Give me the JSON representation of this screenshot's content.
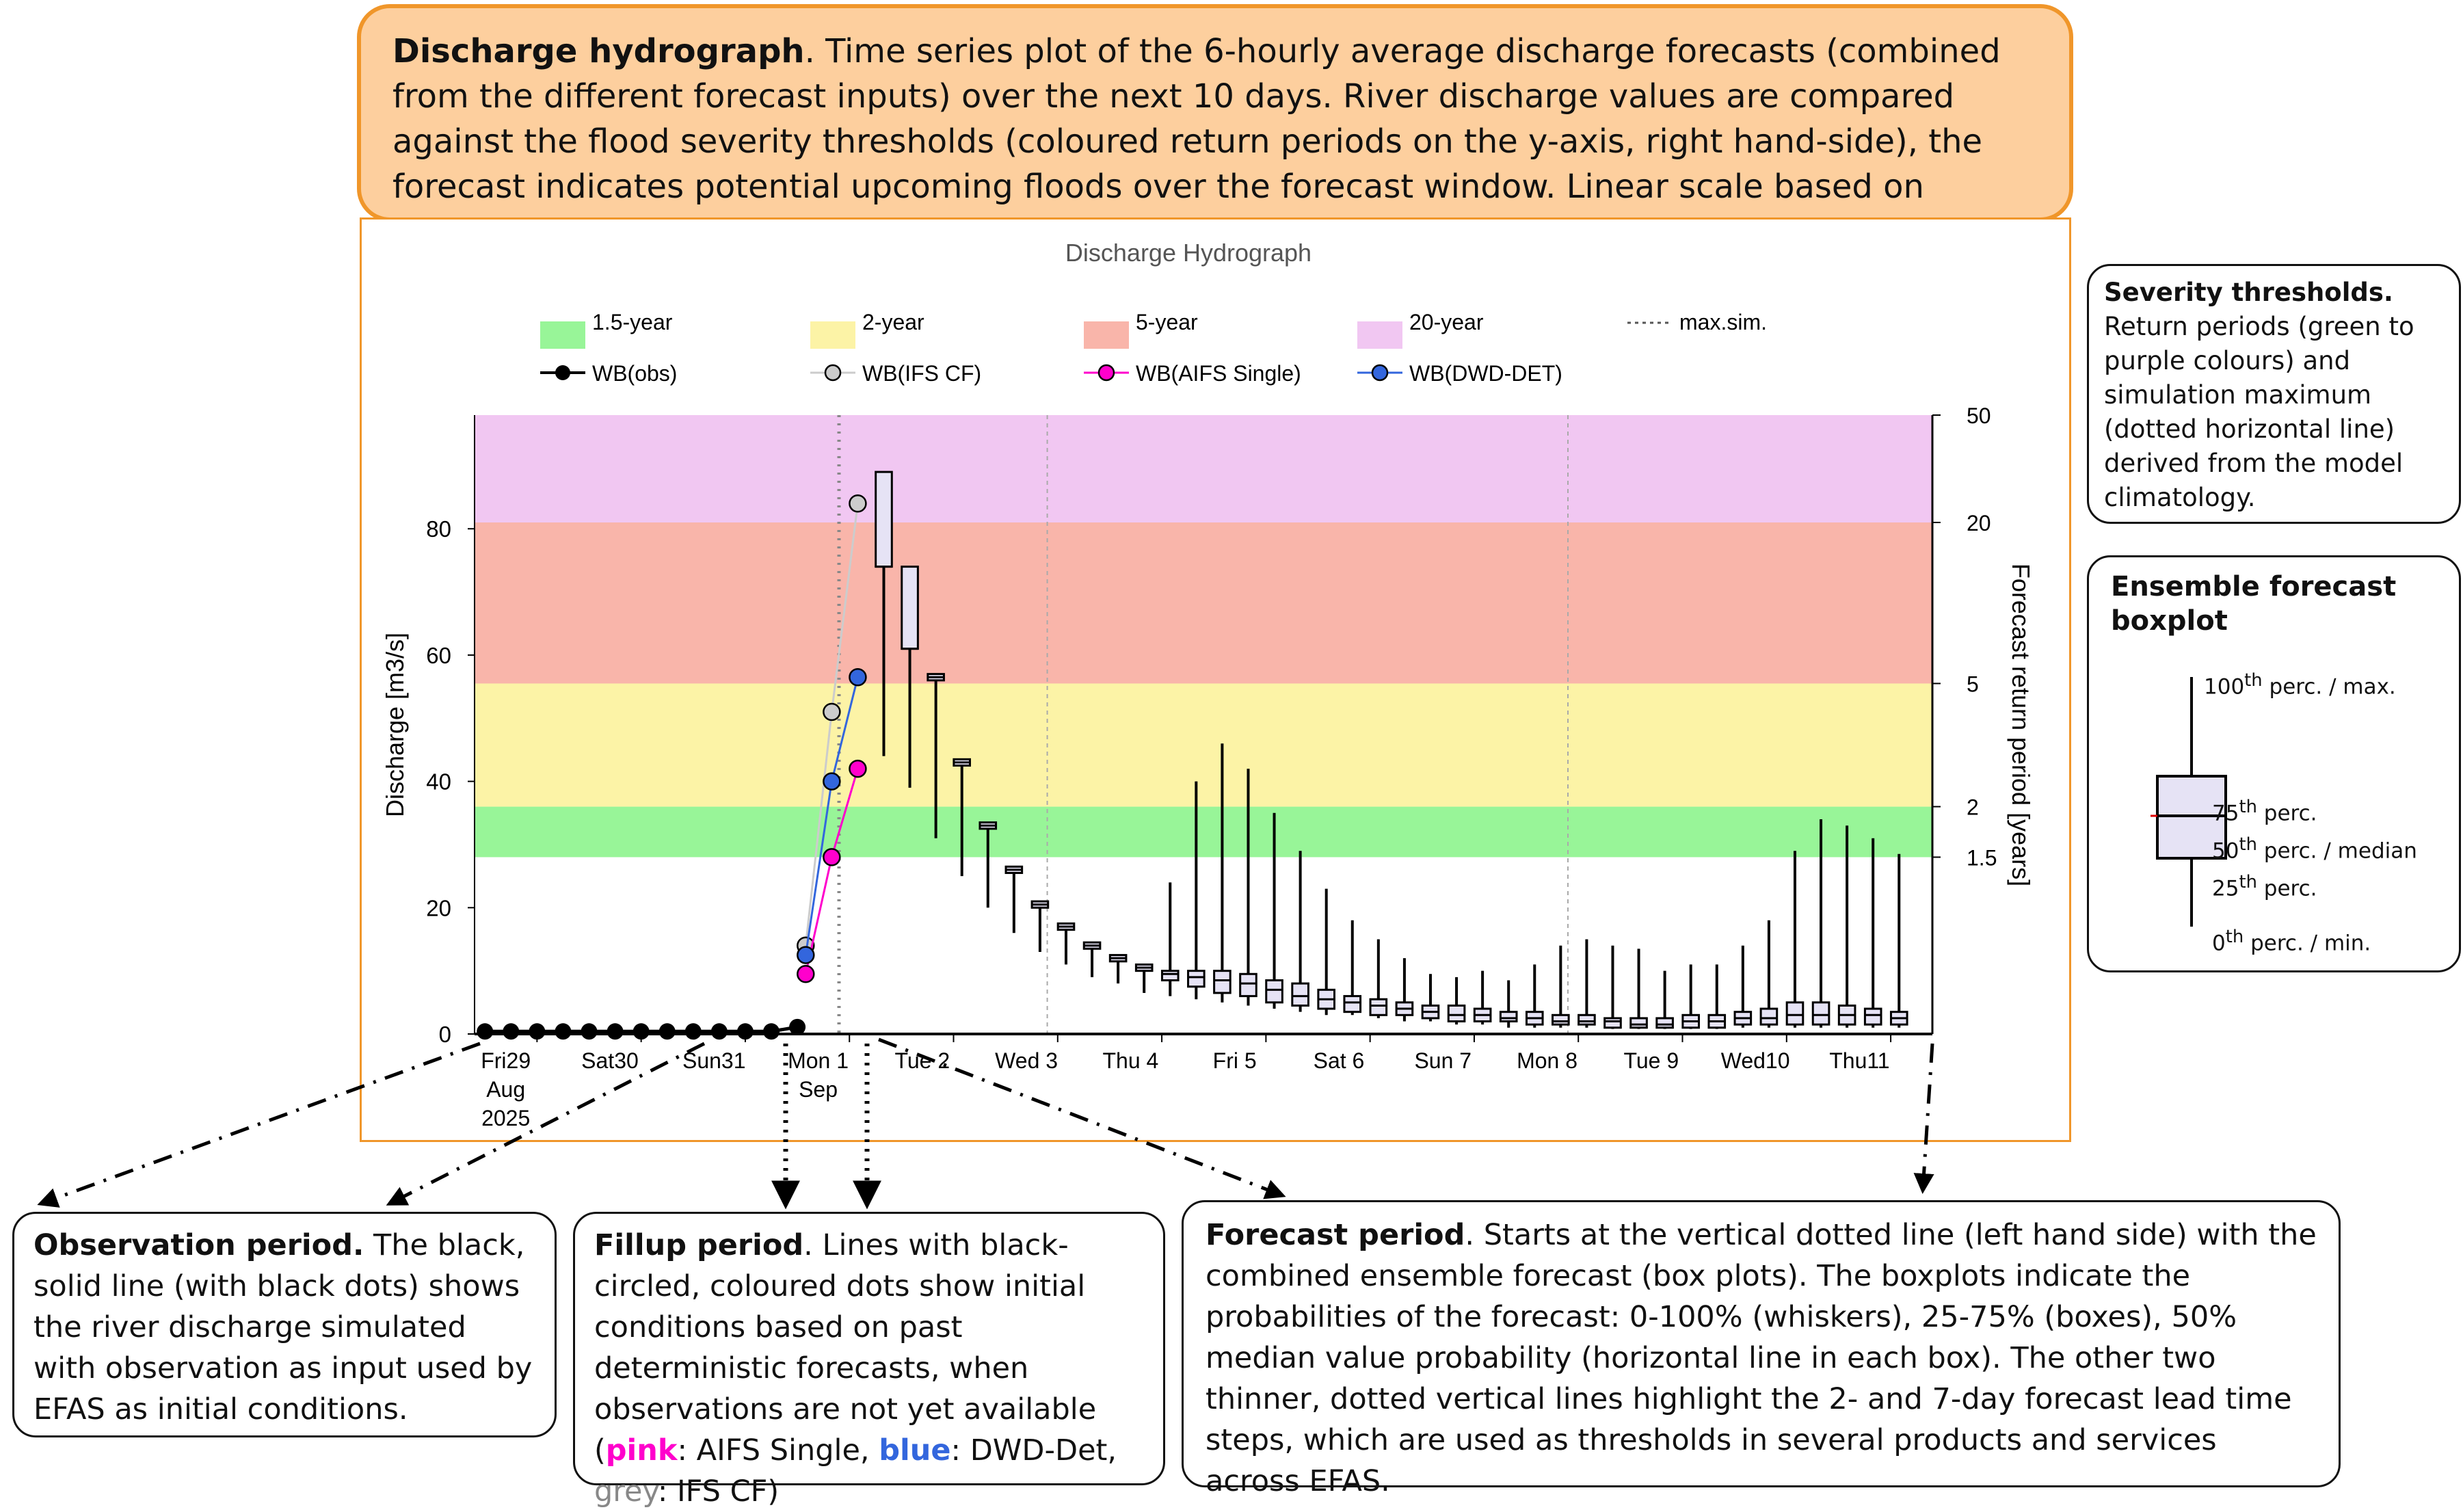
{
  "top_callout": {
    "title": "Discharge hydrograph",
    "text": ". Time series plot of the 6-hourly average discharge forecasts (combined from the different forecast inputs) over the next 10 days. River discharge values are compared against the flood severity thresholds (coloured return periods on the y-axis, right hand-side), the forecast indicates potential upcoming floods over the forecast window. Linear scale based on discharge (left hand-side)."
  },
  "severity_callout": {
    "title": "Severity thresholds.",
    "text": "Return periods (green to purple colours) and simulation maximum (dotted horizontal line) derived from the model climatology."
  },
  "boxplot_callout": {
    "title": "Ensemble forecast boxplot",
    "labels": [
      {
        "sup": "th",
        "num": "100",
        "rest": " perc. / max."
      },
      {
        "sup": "th",
        "num": "75",
        "rest": " perc."
      },
      {
        "sup": "th",
        "num": "50",
        "rest": " perc. / median"
      },
      {
        "sup": "th",
        "num": "25",
        "rest": " perc."
      },
      {
        "sup": "th",
        "num": "0",
        "rest": " perc. / min."
      }
    ]
  },
  "obs_callout": {
    "title": "Observation period.",
    "text": " The black, solid line (with black dots) shows the river discharge simulated with observation as input used by EFAS as initial conditions."
  },
  "fill_callout": {
    "title": "Fillup period",
    "text_a": ". Lines with black-circled, coloured dots show initial conditions based on past deterministic forecasts, when observations are not yet available (",
    "pink": "pink",
    "text_b": ": AIFS Single, ",
    "blue": "blue",
    "text_c": ": DWD-Det, ",
    "grey": "grey",
    "text_d": ": IFS CF)"
  },
  "fc_callout": {
    "title": "Forecast period",
    "text": ". Starts at the vertical dotted line (left hand side) with the combined ensemble forecast (box plots). The boxplots indicate the probabilities of the forecast: 0-100% (whiskers), 25-75% (boxes), 50% median value probability (horizontal line in each box). The other two thinner, dotted vertical lines highlight the 2- and 7-day forecast lead time steps, which are used as thresholds in several products and services across EFAS."
  },
  "colors": {
    "green": "#98f598",
    "yellow": "#fcf3a6",
    "red": "#f9b5aa",
    "purple": "#f1c7f2",
    "pink": "#ff00cc",
    "blue": "#3366dd",
    "grey_dot": "#cccccc",
    "box_fill": "#e6e3f5"
  },
  "chart_data": {
    "type": "line",
    "title": "Discharge Hydrograph",
    "ylabel": "Discharge [m3/s]",
    "y2label": "Forecast return period [years]",
    "ylim": [
      0,
      98
    ],
    "yticks": [
      0,
      20,
      40,
      60,
      80
    ],
    "x_domain_days": [
      0,
      14
    ],
    "xticks": [
      {
        "day": 0.1,
        "lines": [
          "Fri29",
          "Aug",
          "2025"
        ]
      },
      {
        "day": 1.1,
        "lines": [
          "Sat30"
        ]
      },
      {
        "day": 2.1,
        "lines": [
          "Sun31"
        ]
      },
      {
        "day": 3.1,
        "lines": [
          "Mon 1",
          "Sep"
        ]
      },
      {
        "day": 4.1,
        "lines": [
          "Tue 2"
        ]
      },
      {
        "day": 5.1,
        "lines": [
          "Wed 3"
        ]
      },
      {
        "day": 6.1,
        "lines": [
          "Thu 4"
        ]
      },
      {
        "day": 7.1,
        "lines": [
          "Fri 5"
        ]
      },
      {
        "day": 8.1,
        "lines": [
          "Sat 6"
        ]
      },
      {
        "day": 9.1,
        "lines": [
          "Sun 7"
        ]
      },
      {
        "day": 10.1,
        "lines": [
          "Mon 8"
        ]
      },
      {
        "day": 11.1,
        "lines": [
          "Tue 9"
        ]
      },
      {
        "day": 12.1,
        "lines": [
          "Wed10"
        ]
      },
      {
        "day": 13.1,
        "lines": [
          "Thu11"
        ]
      }
    ],
    "thresholds": [
      {
        "name": "1.5-year",
        "from": 28,
        "to": 36,
        "color": "#98f598",
        "rp_label": "1.5"
      },
      {
        "name": "2-year",
        "from": 36,
        "to": 55.5,
        "color": "#fcf3a6",
        "rp_label": "2"
      },
      {
        "name": "5-year",
        "from": 55.5,
        "to": 81,
        "color": "#f9b5aa",
        "rp_label": "5"
      },
      {
        "name": "20-year",
        "from": 81,
        "to": 98,
        "color": "#f1c7f2",
        "rp_label": "20"
      }
    ],
    "rp_top_label": "50",
    "max_sim_label": "max.sim.",
    "vlines": [
      3.5,
      5.5,
      10.5
    ],
    "legend_bands": [
      "1.5-year",
      "2-year",
      "5-year",
      "20-year",
      "max.sim."
    ],
    "series": [
      {
        "name": "WB(obs)",
        "color": "#000000",
        "points": [
          [
            0.1,
            0.4
          ],
          [
            0.35,
            0.4
          ],
          [
            0.6,
            0.4
          ],
          [
            0.85,
            0.4
          ],
          [
            1.1,
            0.4
          ],
          [
            1.35,
            0.4
          ],
          [
            1.6,
            0.4
          ],
          [
            1.85,
            0.4
          ],
          [
            2.1,
            0.4
          ],
          [
            2.35,
            0.4
          ],
          [
            2.6,
            0.4
          ],
          [
            2.85,
            0.4
          ],
          [
            3.1,
            1.1
          ]
        ]
      },
      {
        "name": "WB(IFS CF)",
        "color": "#cccccc",
        "points": [
          [
            3.18,
            14
          ],
          [
            3.43,
            51
          ],
          [
            3.68,
            84
          ]
        ]
      },
      {
        "name": "WB(AIFS Single)",
        "color": "#ff00cc",
        "points": [
          [
            3.18,
            9.5
          ],
          [
            3.43,
            28
          ],
          [
            3.68,
            42
          ]
        ]
      },
      {
        "name": "WB(DWD-DET)",
        "color": "#3366dd",
        "points": [
          [
            3.18,
            12.5
          ],
          [
            3.43,
            40
          ],
          [
            3.68,
            56.5
          ]
        ]
      }
    ],
    "boxplots": [
      {
        "d": 3.93,
        "min": 44,
        "q1": 74,
        "med": 74,
        "q3": 89,
        "max": 89
      },
      {
        "d": 4.18,
        "min": 39,
        "q1": 61,
        "med": 61,
        "q3": 74,
        "max": 74
      },
      {
        "d": 4.43,
        "min": 31,
        "q1": 56,
        "med": 56.5,
        "q3": 57,
        "max": 57
      },
      {
        "d": 4.68,
        "min": 25,
        "q1": 42.5,
        "med": 43,
        "q3": 43.5,
        "max": 43.5
      },
      {
        "d": 4.93,
        "min": 20,
        "q1": 32.5,
        "med": 33,
        "q3": 33.5,
        "max": 33.5
      },
      {
        "d": 5.18,
        "min": 16,
        "q1": 25.5,
        "med": 26,
        "q3": 26.5,
        "max": 26.5
      },
      {
        "d": 5.43,
        "min": 13,
        "q1": 20,
        "med": 20.5,
        "q3": 21,
        "max": 21
      },
      {
        "d": 5.68,
        "min": 11,
        "q1": 16.5,
        "med": 17,
        "q3": 17.5,
        "max": 17.5
      },
      {
        "d": 5.93,
        "min": 9,
        "q1": 13.5,
        "med": 14,
        "q3": 14.5,
        "max": 14.5
      },
      {
        "d": 6.18,
        "min": 8,
        "q1": 11.5,
        "med": 12,
        "q3": 12.5,
        "max": 12.5
      },
      {
        "d": 6.43,
        "min": 6.5,
        "q1": 10,
        "med": 10.5,
        "q3": 11,
        "max": 11
      },
      {
        "d": 6.68,
        "min": 6,
        "q1": 8.5,
        "med": 9.5,
        "q3": 10,
        "max": 24
      },
      {
        "d": 6.93,
        "min": 5.5,
        "q1": 7.5,
        "med": 9,
        "q3": 10,
        "max": 40
      },
      {
        "d": 7.18,
        "min": 5,
        "q1": 6.5,
        "med": 8.5,
        "q3": 10,
        "max": 46
      },
      {
        "d": 7.43,
        "min": 4.5,
        "q1": 6,
        "med": 8,
        "q3": 9.5,
        "max": 42
      },
      {
        "d": 7.68,
        "min": 4,
        "q1": 5,
        "med": 7,
        "q3": 8.5,
        "max": 35
      },
      {
        "d": 7.93,
        "min": 3.5,
        "q1": 4.5,
        "med": 6,
        "q3": 8,
        "max": 29
      },
      {
        "d": 8.18,
        "min": 3,
        "q1": 4,
        "med": 5.5,
        "q3": 7,
        "max": 23
      },
      {
        "d": 8.43,
        "min": 3,
        "q1": 3.5,
        "med": 5,
        "q3": 6,
        "max": 18
      },
      {
        "d": 8.68,
        "min": 2.5,
        "q1": 3,
        "med": 4.5,
        "q3": 5.5,
        "max": 15
      },
      {
        "d": 8.93,
        "min": 2,
        "q1": 3,
        "med": 4,
        "q3": 5,
        "max": 12
      },
      {
        "d": 9.18,
        "min": 2,
        "q1": 2.5,
        "med": 3.5,
        "q3": 4.5,
        "max": 9.5
      },
      {
        "d": 9.43,
        "min": 1.5,
        "q1": 2,
        "med": 3,
        "q3": 4.5,
        "max": 9
      },
      {
        "d": 9.68,
        "min": 1.5,
        "q1": 2,
        "med": 3,
        "q3": 4,
        "max": 10
      },
      {
        "d": 9.93,
        "min": 1,
        "q1": 2,
        "med": 2.5,
        "q3": 3.5,
        "max": 8.5
      },
      {
        "d": 10.18,
        "min": 1,
        "q1": 1.5,
        "med": 2.5,
        "q3": 3.5,
        "max": 11
      },
      {
        "d": 10.43,
        "min": 1,
        "q1": 1.5,
        "med": 2,
        "q3": 3,
        "max": 14
      },
      {
        "d": 10.68,
        "min": 1,
        "q1": 1.5,
        "med": 2,
        "q3": 3,
        "max": 15
      },
      {
        "d": 10.93,
        "min": 0.8,
        "q1": 1,
        "med": 2,
        "q3": 2.5,
        "max": 14
      },
      {
        "d": 11.18,
        "min": 0.8,
        "q1": 1,
        "med": 1.5,
        "q3": 2.5,
        "max": 13.5
      },
      {
        "d": 11.43,
        "min": 0.8,
        "q1": 1,
        "med": 1.5,
        "q3": 2.5,
        "max": 10
      },
      {
        "d": 11.68,
        "min": 0.8,
        "q1": 1,
        "med": 2,
        "q3": 3,
        "max": 11
      },
      {
        "d": 11.93,
        "min": 0.8,
        "q1": 1,
        "med": 2,
        "q3": 3,
        "max": 11
      },
      {
        "d": 12.18,
        "min": 1,
        "q1": 1.5,
        "med": 2.5,
        "q3": 3.5,
        "max": 14
      },
      {
        "d": 12.43,
        "min": 1,
        "q1": 1.5,
        "med": 2.5,
        "q3": 4,
        "max": 18
      },
      {
        "d": 12.68,
        "min": 1,
        "q1": 1.5,
        "med": 3,
        "q3": 5,
        "max": 29
      },
      {
        "d": 12.93,
        "min": 1,
        "q1": 1.5,
        "med": 3,
        "q3": 5,
        "max": 34
      },
      {
        "d": 13.18,
        "min": 1,
        "q1": 1.5,
        "med": 3,
        "q3": 4.5,
        "max": 33
      },
      {
        "d": 13.43,
        "min": 1,
        "q1": 1.5,
        "med": 3,
        "q3": 4,
        "max": 31
      },
      {
        "d": 13.68,
        "min": 1,
        "q1": 1.5,
        "med": 2.5,
        "q3": 3.5,
        "max": 28.5
      }
    ]
  }
}
